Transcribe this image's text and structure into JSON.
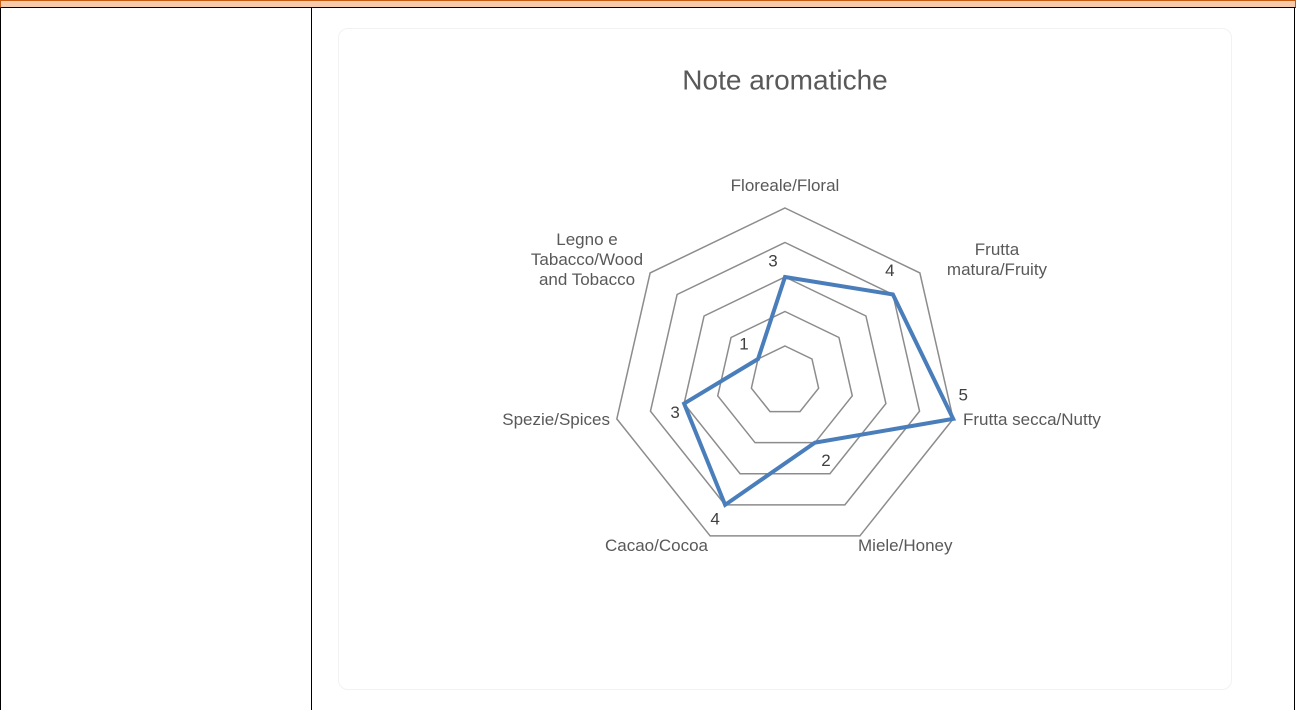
{
  "chart_data": {
    "type": "radar",
    "title": "Note aromatiche",
    "categories": [
      "Floreale/Floral",
      "Frutta matura/Fruity",
      "Frutta secca/Nutty",
      "Miele/Honey",
      "Cacao/Cocoa",
      "Spezie/Spices",
      "Legno e Tabacco/Wood and Tobacco"
    ],
    "values": [
      3,
      4,
      5,
      2,
      4,
      3,
      1
    ],
    "color": "#4a7ebb",
    "ylim": [
      0,
      5
    ],
    "yticks": [
      1,
      2,
      3,
      4,
      5
    ],
    "grid": true
  }
}
